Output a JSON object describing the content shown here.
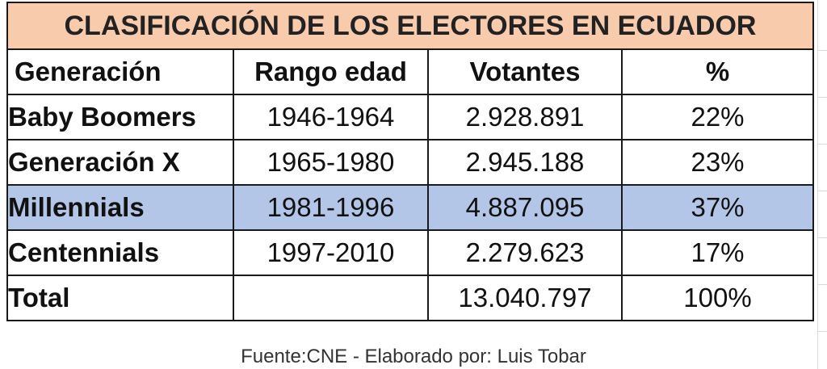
{
  "chart_data": {
    "type": "table",
    "title": "CLASIFICACIÓN DE LOS ELECTORES EN ECUADOR",
    "columns": [
      "Generación",
      "Rango edad",
      "Votantes",
      "%"
    ],
    "rows": [
      {
        "generacion": "Baby Boomers",
        "rango": "1946-1964",
        "votantes": "2.928.891",
        "pct": "22%",
        "highlighted": false
      },
      {
        "generacion": "Generación X",
        "rango": "1965-1980",
        "votantes": "2.945.188",
        "pct": "23%",
        "highlighted": false
      },
      {
        "generacion": "Millennials",
        "rango": "1981-1996",
        "votantes": "4.887.095",
        "pct": "37%",
        "highlighted": true
      },
      {
        "generacion": "Centennials",
        "rango": "1997-2010",
        "votantes": "2.279.623",
        "pct": "17%",
        "highlighted": false
      }
    ],
    "total": {
      "label": "Total",
      "rango": "",
      "votantes": "13.040.797",
      "pct": "100%"
    },
    "footer": "Fuente:CNE - Elaborado por: Luis Tobar"
  },
  "colors": {
    "title_background": "#f8cbad",
    "highlight_row": "#b4c6e7",
    "border": "#1a1a1a"
  }
}
